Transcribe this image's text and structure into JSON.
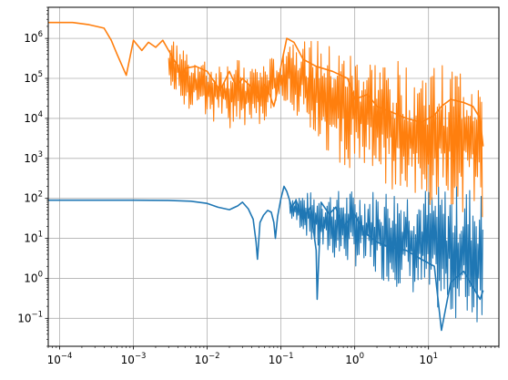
{
  "chart_data": {
    "type": "line",
    "title": "",
    "xlabel": "",
    "ylabel": "",
    "xscale": "log",
    "yscale": "log",
    "xlim": [
      7e-05,
      90
    ],
    "ylim": [
      0.02,
      6000000
    ],
    "grid": true,
    "x_ticks": [
      {
        "base": "10",
        "exp": "−4",
        "value": 0.0001
      },
      {
        "base": "10",
        "exp": "−3",
        "value": 0.001
      },
      {
        "base": "10",
        "exp": "−2",
        "value": 0.01
      },
      {
        "base": "10",
        "exp": "−1",
        "value": 0.1
      },
      {
        "base": "10",
        "exp": "0",
        "value": 1
      },
      {
        "base": "10",
        "exp": "1",
        "value": 10
      }
    ],
    "y_ticks": [
      {
        "base": "10",
        "exp": "−1",
        "value": 0.1
      },
      {
        "base": "10",
        "exp": "0",
        "value": 1
      },
      {
        "base": "10",
        "exp": "1",
        "value": 10
      },
      {
        "base": "10",
        "exp": "2",
        "value": 100
      },
      {
        "base": "10",
        "exp": "3",
        "value": 1000
      },
      {
        "base": "10",
        "exp": "4",
        "value": 10000
      },
      {
        "base": "10",
        "exp": "5",
        "value": 100000
      },
      {
        "base": "10",
        "exp": "6",
        "value": 1000000
      }
    ],
    "series": [
      {
        "color": "#1f77b4",
        "x": [
          7e-05,
          0.0001,
          0.0003,
          0.001,
          0.003,
          0.006,
          0.01,
          0.014,
          0.02,
          0.026,
          0.03,
          0.036,
          0.042,
          0.046,
          0.048,
          0.052,
          0.058,
          0.066,
          0.074,
          0.08,
          0.084,
          0.09,
          0.1,
          0.11,
          0.12,
          0.14,
          0.16,
          0.2,
          0.25,
          0.3,
          0.31,
          0.35,
          0.45,
          0.55,
          0.7,
          1,
          1.3,
          2,
          3,
          5,
          8,
          12,
          15,
          20,
          30,
          40,
          50,
          55
        ],
        "y": [
          90,
          90,
          90,
          90,
          89,
          85,
          75,
          60,
          52,
          65,
          80,
          55,
          30,
          8,
          3,
          25,
          38,
          50,
          45,
          25,
          10,
          35,
          100,
          200,
          150,
          60,
          90,
          30,
          60,
          5,
          0.3,
          80,
          40,
          60,
          20,
          40,
          15,
          8,
          6,
          5,
          3,
          2,
          0.05,
          0.8,
          1.5,
          0.6,
          0.3,
          0.5
        ],
        "envelope": {
          "x": [
            0.13,
            0.2,
            0.3,
            0.5,
            1,
            2,
            5,
            10,
            20,
            40,
            50,
            55
          ],
          "upper": [
            130,
            140,
            150,
            160,
            170,
            180,
            200,
            200,
            220,
            230,
            200,
            100
          ],
          "lower": [
            30,
            15,
            5,
            3,
            2,
            1,
            0.5,
            0.2,
            0.1,
            0.08,
            0.07,
            0.1
          ]
        }
      },
      {
        "color": "#ff7f0e",
        "x": [
          7e-05,
          0.00015,
          0.00025,
          0.0004,
          0.0005,
          0.0006,
          0.0008,
          0.001,
          0.0013,
          0.0016,
          0.002,
          0.0025,
          0.003,
          0.004,
          0.0045,
          0.005,
          0.007,
          0.01,
          0.015,
          0.02,
          0.025,
          0.03,
          0.04,
          0.05,
          0.06,
          0.07,
          0.08,
          0.09,
          0.1,
          0.12,
          0.15,
          0.2,
          0.3,
          0.5,
          0.8,
          1,
          1.5,
          2,
          3,
          5,
          8,
          12,
          15,
          20,
          30,
          40,
          50,
          55
        ],
        "y": [
          2500000,
          2500000,
          2200000,
          1800000,
          900000,
          400000,
          120000,
          900000,
          500000,
          800000,
          600000,
          900000,
          500000,
          200000,
          100000,
          180000,
          200000,
          150000,
          50000,
          150000,
          60000,
          100000,
          60000,
          30000,
          70000,
          40000,
          20000,
          50000,
          200000,
          1000000,
          800000,
          300000,
          200000,
          150000,
          100000,
          30000,
          40000,
          20000,
          15000,
          10000,
          8000,
          12000,
          20000,
          30000,
          25000,
          20000,
          10000,
          2000
        ],
        "envelope": {
          "x": [
            0.003,
            0.005,
            0.01,
            0.02,
            0.05,
            0.1,
            0.12,
            0.15,
            0.2,
            0.3,
            0.5,
            1,
            2,
            5,
            10,
            20,
            40,
            50,
            55
          ],
          "upper": [
            1000000,
            600000,
            250000,
            300000,
            250000,
            400000,
            1500000,
            1200000,
            1000000,
            900000,
            600000,
            450000,
            350000,
            250000,
            220000,
            250000,
            250000,
            220000,
            60000
          ],
          "lower": [
            80000,
            20000,
            10000,
            5000,
            6000,
            20000,
            30000,
            15000,
            8000,
            3000,
            1000,
            500,
            200,
            100,
            60,
            50,
            40,
            20,
            5
          ]
        }
      }
    ]
  }
}
